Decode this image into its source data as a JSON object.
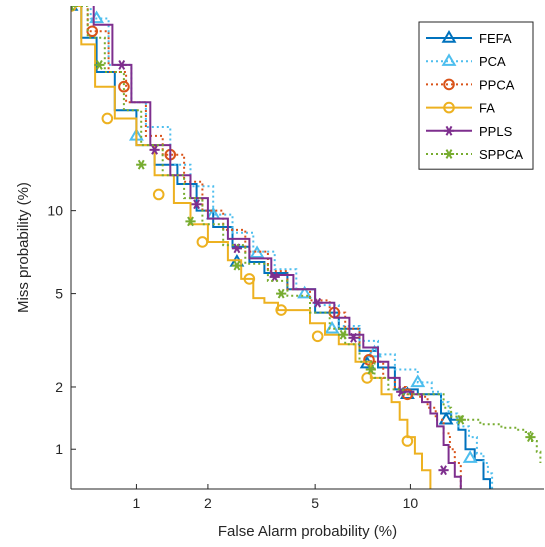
{
  "chart_data": {
    "type": "line",
    "title": "",
    "xlabel": "False Alarm probability (%)",
    "ylabel": "Miss probability (%)",
    "x_scale": "probit",
    "y_scale": "probit",
    "xlim": [
      0.5,
      22
    ],
    "ylim": [
      0.62,
      35
    ],
    "x_ticks": [
      {
        "value": 1,
        "label": "1"
      },
      {
        "value": 2,
        "label": "2"
      },
      {
        "value": 5,
        "label": "5"
      },
      {
        "value": 10,
        "label": "10"
      }
    ],
    "y_ticks": [
      {
        "value": 1,
        "label": "1"
      },
      {
        "value": 2,
        "label": "2"
      },
      {
        "value": 5,
        "label": "5"
      },
      {
        "value": 10,
        "label": "10"
      }
    ],
    "grid": false,
    "legend_position": "top-right",
    "series": [
      {
        "name": "FEFA",
        "color": "#0072BD",
        "line_style": "solid",
        "marker": "triangle",
        "points": [
          [
            0.5,
            35
          ],
          [
            0.56,
            30
          ],
          [
            0.66,
            25
          ],
          [
            0.8,
            20
          ],
          [
            1.0,
            16
          ],
          [
            1.2,
            14
          ],
          [
            1.5,
            12.2
          ],
          [
            1.8,
            10
          ],
          [
            2.1,
            8.8
          ],
          [
            2.5,
            7.5
          ],
          [
            2.9,
            6.6
          ],
          [
            3.3,
            6.0
          ],
          [
            4.0,
            5.2
          ],
          [
            5.0,
            4.2
          ],
          [
            6.0,
            3.6
          ],
          [
            7.0,
            2.9
          ],
          [
            8.0,
            2.45
          ],
          [
            9.0,
            1.95
          ],
          [
            10.5,
            1.85
          ],
          [
            11.5,
            1.85
          ],
          [
            12.2,
            1.5
          ],
          [
            13.0,
            1.4
          ],
          [
            13.6,
            1.25
          ],
          [
            14.2,
            1.0
          ],
          [
            15.0,
            0.88
          ],
          [
            15.8,
            0.7
          ],
          [
            16.4,
            0.62
          ]
        ],
        "marker_points": [
          [
            0.5,
            35
          ],
          [
            2.6,
            6.6
          ],
          [
            7.4,
            2.55
          ],
          [
            9.8,
            1.85
          ],
          [
            12.6,
            1.4
          ]
        ]
      },
      {
        "name": "PCA",
        "color": "#4DBEEE",
        "line_style": "dotted",
        "marker": "triangle",
        "points": [
          [
            0.5,
            38
          ],
          [
            0.62,
            33
          ],
          [
            0.75,
            26
          ],
          [
            0.95,
            21
          ],
          [
            1.1,
            18
          ],
          [
            1.4,
            14
          ],
          [
            1.7,
            12
          ],
          [
            2.1,
            9.7
          ],
          [
            2.5,
            8.4
          ],
          [
            3.0,
            7.2
          ],
          [
            3.6,
            6.2
          ],
          [
            4.3,
            5.2
          ],
          [
            5.0,
            4.5
          ],
          [
            6.0,
            3.7
          ],
          [
            7.0,
            3.2
          ],
          [
            8.0,
            2.8
          ],
          [
            9.0,
            2.4
          ],
          [
            10.5,
            2.1
          ],
          [
            11.5,
            1.9
          ],
          [
            12.2,
            1.7
          ],
          [
            12.8,
            1.5
          ],
          [
            13.5,
            1.3
          ],
          [
            14.5,
            1.15
          ],
          [
            15.2,
            0.95
          ],
          [
            15.8,
            0.85
          ],
          [
            16.2,
            0.75
          ],
          [
            16.6,
            0.62
          ]
        ],
        "marker_points": [
          [
            0.66,
            33
          ],
          [
            1.0,
            17
          ],
          [
            2.1,
            9.7
          ],
          [
            3.1,
            7.1
          ],
          [
            4.6,
            5.0
          ],
          [
            5.7,
            3.6
          ],
          [
            7.8,
            2.85
          ],
          [
            10.5,
            2.1
          ],
          [
            14.6,
            0.9
          ]
        ]
      },
      {
        "name": "PPCA",
        "color": "#D95319",
        "line_style": "dotted",
        "marker": "circle",
        "points": [
          [
            0.5,
            36
          ],
          [
            0.6,
            31
          ],
          [
            0.75,
            25
          ],
          [
            0.9,
            21
          ],
          [
            1.1,
            17
          ],
          [
            1.3,
            15
          ],
          [
            1.6,
            12.4
          ],
          [
            1.9,
            10
          ],
          [
            2.3,
            8.6
          ],
          [
            2.8,
            7.2
          ],
          [
            3.4,
            6.1
          ],
          [
            4.0,
            5.2
          ],
          [
            4.8,
            4.7
          ],
          [
            5.6,
            4.2
          ],
          [
            6.3,
            3.6
          ],
          [
            7.0,
            3.0
          ],
          [
            7.6,
            2.6
          ],
          [
            8.3,
            2.2
          ],
          [
            9.0,
            2.0
          ],
          [
            9.7,
            1.85
          ],
          [
            10.5,
            1.8
          ],
          [
            11.2,
            1.6
          ],
          [
            11.8,
            1.4
          ],
          [
            12.4,
            1.2
          ],
          [
            12.9,
            1.0
          ],
          [
            13.3,
            0.85
          ],
          [
            13.8,
            0.62
          ]
        ],
        "marker_points": [
          [
            0.63,
            31
          ],
          [
            0.88,
            23
          ],
          [
            1.4,
            15
          ],
          [
            5.8,
            4.2
          ],
          [
            7.5,
            2.65
          ],
          [
            9.8,
            1.85
          ]
        ]
      },
      {
        "name": "FA",
        "color": "#EDB120",
        "line_style": "solid",
        "marker": "circle",
        "points": [
          [
            0.5,
            35
          ],
          [
            0.56,
            29
          ],
          [
            0.65,
            23
          ],
          [
            0.8,
            19
          ],
          [
            1.0,
            16
          ],
          [
            1.2,
            13
          ],
          [
            1.45,
            10.6
          ],
          [
            1.7,
            9.0
          ],
          [
            2.0,
            7.8
          ],
          [
            2.4,
            6.7
          ],
          [
            2.7,
            5.7
          ],
          [
            3.0,
            4.8
          ],
          [
            3.3,
            4.6
          ],
          [
            3.7,
            4.3
          ],
          [
            4.3,
            4.3
          ],
          [
            4.8,
            3.8
          ],
          [
            5.4,
            3.4
          ],
          [
            6.0,
            3.1
          ],
          [
            6.8,
            2.6
          ],
          [
            7.6,
            2.2
          ],
          [
            8.2,
            1.85
          ],
          [
            8.8,
            1.7
          ],
          [
            9.3,
            1.4
          ],
          [
            9.8,
            1.15
          ],
          [
            10.3,
            0.95
          ],
          [
            10.8,
            0.78
          ],
          [
            11.4,
            0.62
          ]
        ],
        "marker_points": [
          [
            0.5,
            35
          ],
          [
            0.74,
            19
          ],
          [
            1.25,
            11.3
          ],
          [
            1.9,
            7.8
          ],
          [
            2.9,
            5.7
          ],
          [
            3.8,
            4.3
          ],
          [
            5.1,
            3.35
          ],
          [
            7.4,
            2.2
          ],
          [
            9.8,
            1.1
          ]
        ]
      },
      {
        "name": "PPLS",
        "color": "#7E2F8E",
        "line_style": "solid",
        "marker": "asterisk",
        "points": [
          [
            0.52,
            37
          ],
          [
            0.64,
            32
          ],
          [
            0.78,
            26
          ],
          [
            0.95,
            21
          ],
          [
            1.15,
            16
          ],
          [
            1.4,
            13
          ],
          [
            1.7,
            11
          ],
          [
            2.0,
            9.4
          ],
          [
            2.4,
            8.0
          ],
          [
            2.9,
            6.8
          ],
          [
            3.5,
            5.9
          ],
          [
            4.2,
            5.2
          ],
          [
            5.0,
            4.6
          ],
          [
            5.8,
            4.0
          ],
          [
            6.5,
            3.4
          ],
          [
            7.2,
            3.0
          ],
          [
            8.0,
            2.6
          ],
          [
            8.6,
            2.2
          ],
          [
            9.3,
            1.9
          ],
          [
            10.2,
            1.85
          ],
          [
            10.8,
            1.7
          ],
          [
            11.4,
            1.5
          ],
          [
            11.9,
            1.3
          ],
          [
            12.4,
            1.05
          ],
          [
            12.8,
            0.85
          ],
          [
            13.3,
            0.72
          ],
          [
            13.8,
            0.62
          ]
        ],
        "marker_points": [
          [
            0.86,
            26
          ],
          [
            1.2,
            15.5
          ],
          [
            1.8,
            10.5
          ],
          [
            2.6,
            7.4
          ],
          [
            3.6,
            5.8
          ],
          [
            5.1,
            4.6
          ],
          [
            6.7,
            3.3
          ],
          [
            9.4,
            1.9
          ],
          [
            12.4,
            0.78
          ]
        ]
      },
      {
        "name": "SPPCA",
        "color": "#77AC30",
        "line_style": "dotted",
        "marker": "asterisk",
        "points": [
          [
            0.5,
            35
          ],
          [
            0.6,
            30
          ],
          [
            0.72,
            25
          ],
          [
            0.88,
            20
          ],
          [
            1.05,
            16
          ],
          [
            1.3,
            13
          ],
          [
            1.6,
            11
          ],
          [
            1.9,
            9.0
          ],
          [
            2.3,
            7.6
          ],
          [
            2.8,
            6.5
          ],
          [
            3.4,
            5.6
          ],
          [
            4.0,
            4.9
          ],
          [
            4.8,
            4.2
          ],
          [
            5.6,
            3.6
          ],
          [
            6.3,
            3.1
          ],
          [
            7.0,
            2.6
          ],
          [
            7.8,
            2.2
          ],
          [
            8.6,
            1.95
          ],
          [
            9.5,
            1.85
          ],
          [
            10.5,
            1.85
          ],
          [
            11.5,
            1.85
          ],
          [
            12.4,
            1.6
          ],
          [
            13.0,
            1.45
          ],
          [
            14.0,
            1.4
          ],
          [
            15.5,
            1.33
          ],
          [
            17.5,
            1.28
          ],
          [
            19.0,
            1.25
          ],
          [
            20.0,
            1.22
          ],
          [
            20.5,
            1.1
          ],
          [
            21.2,
            0.97
          ],
          [
            21.6,
            0.85
          ]
        ],
        "marker_points": [
          [
            0.5,
            35
          ],
          [
            0.68,
            26
          ],
          [
            1.05,
            14
          ],
          [
            1.7,
            9.2
          ],
          [
            2.6,
            6.4
          ],
          [
            3.8,
            5.0
          ],
          [
            6.2,
            3.4
          ],
          [
            7.6,
            2.4
          ],
          [
            13.8,
            1.4
          ],
          [
            20.5,
            1.15
          ]
        ]
      }
    ]
  }
}
